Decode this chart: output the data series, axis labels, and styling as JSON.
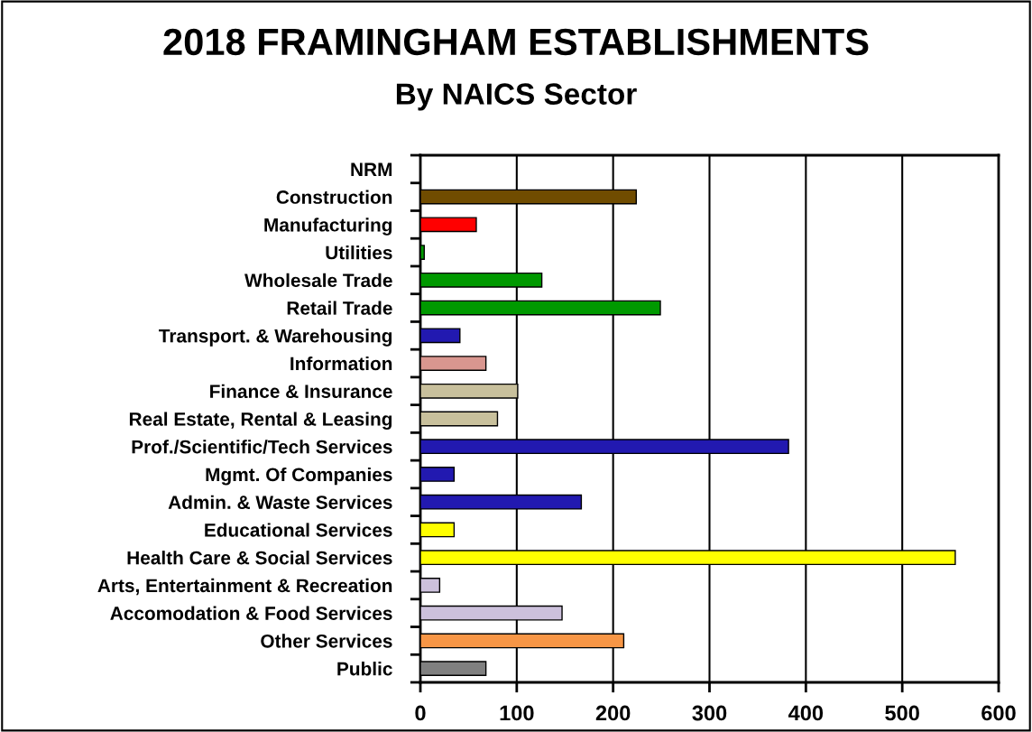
{
  "chart_data": {
    "type": "bar",
    "orientation": "horizontal",
    "title": "2018 FRAMINGHAM ESTABLISHMENTS",
    "subtitle": "By NAICS Sector",
    "categories": [
      "NRM",
      "Construction",
      "Manufacturing",
      "Utilities",
      "Wholesale Trade",
      "Retail Trade",
      "Transport. & Warehousing",
      "Information",
      "Finance & Insurance",
      "Real Estate, Rental & Leasing",
      "Prof./Scientific/Tech Services",
      "Mgmt. Of Companies",
      "Admin. & Waste Services",
      "Educational Services",
      "Health Care & Social Services",
      "Arts, Entertainment & Recreation",
      "Accomodation & Food Services",
      "Other Services",
      "Public"
    ],
    "values": [
      null,
      224,
      58,
      4,
      126,
      249,
      41,
      68,
      101,
      80,
      382,
      35,
      167,
      35,
      555,
      20,
      147,
      211,
      68
    ],
    "colors": [
      null,
      "#704c00",
      "#ff0000",
      "#009900",
      "#009900",
      "#009900",
      "#2219b0",
      "#d9968f",
      "#c8c09c",
      "#c8c09c",
      "#2219b0",
      "#2219b0",
      "#2219b0",
      "#ffff00",
      "#ffff00",
      "#ccc0dc",
      "#ccc0dc",
      "#f79646",
      "#808080"
    ],
    "xlim": [
      0,
      600
    ],
    "xticks": [
      0,
      100,
      200,
      300,
      400,
      500,
      600
    ],
    "grid": "x"
  }
}
